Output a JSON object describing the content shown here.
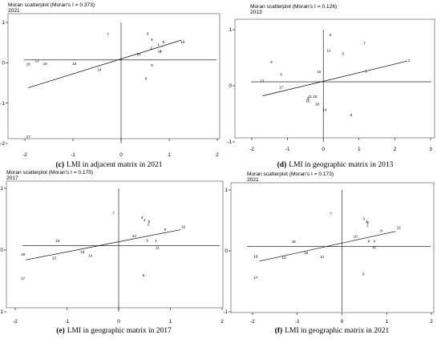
{
  "chart_data": [
    {
      "type": "scatter",
      "title": "Moran scatterplot (Moran's I = 0.373)",
      "subtitle": "2021",
      "caption_letter": "(c)",
      "caption": "LMI in adjacent matrix in 2021",
      "xlim": [
        -2,
        2
      ],
      "ylim": [
        -2,
        1
      ],
      "x_ticks": [
        "-2",
        "-1",
        "0",
        "1",
        "2"
      ],
      "y_ticks": [
        "-2",
        "-1",
        "0",
        "1"
      ],
      "x_tick_values": [
        -2,
        -1,
        0,
        1,
        2
      ],
      "y_tick_values": [
        -2,
        -1,
        0,
        1
      ],
      "fit_line": {
        "x": [
          -1.93,
          1.25
        ],
        "y": [
          -0.62,
          0.56
        ]
      },
      "points": [
        {
          "label": "1",
          "x": 0.78,
          "y": 0.46
        },
        {
          "label": "2",
          "x": 0.63,
          "y": 0.37
        },
        {
          "label": "3",
          "x": 0.55,
          "y": 0.72
        },
        {
          "label": "4",
          "x": 0.82,
          "y": 0.29
        },
        {
          "label": "5",
          "x": 0.64,
          "y": 0.57
        },
        {
          "label": "6",
          "x": 0.52,
          "y": -0.39
        },
        {
          "label": "7",
          "x": -0.27,
          "y": 0.7
        },
        {
          "label": "8",
          "x": 0.88,
          "y": 0.52
        },
        {
          "label": "9",
          "x": 0.64,
          "y": -0.06
        },
        {
          "label": "10",
          "x": 0.37,
          "y": 0.22
        },
        {
          "label": "11",
          "x": 0.8,
          "y": 0.29
        },
        {
          "label": "12",
          "x": 1.28,
          "y": 0.52
        },
        {
          "label": "13",
          "x": -1.75,
          "y": 0.05
        },
        {
          "label": "14",
          "x": -0.45,
          "y": -0.17
        },
        {
          "label": "15",
          "x": -1.58,
          "y": -0.02
        },
        {
          "label": "16",
          "x": -0.97,
          "y": -0.02
        },
        {
          "label": "17",
          "x": -1.93,
          "y": -1.83
        },
        {
          "label": "18",
          "x": -1.93,
          "y": -0.03
        }
      ]
    },
    {
      "type": "scatter",
      "title": "Moran scatterplot (Moran's I = 0.126)",
      "subtitle": "2013",
      "caption_letter": "(d)",
      "caption": "LMI in geographic matrix in 2013",
      "xlim": [
        -2,
        3
      ],
      "ylim": [
        -1,
        1
      ],
      "x_ticks": [
        "-2",
        "-1",
        "0",
        "1",
        "2",
        "3"
      ],
      "y_ticks": [
        "-1",
        "0",
        "1"
      ],
      "x_tick_values": [
        -2,
        -1,
        0,
        1,
        2,
        3
      ],
      "y_tick_values": [
        -1,
        0,
        1
      ],
      "fit_line": {
        "x": [
          -1.7,
          2.35
        ],
        "y": [
          -0.18,
          0.44
        ]
      },
      "points": [
        {
          "label": "1",
          "x": 1.2,
          "y": 0.26
        },
        {
          "label": "2",
          "x": 2.4,
          "y": 0.45
        },
        {
          "label": "3",
          "x": 0.55,
          "y": 0.57
        },
        {
          "label": "4",
          "x": -1.18,
          "y": 0.2
        },
        {
          "label": "5",
          "x": 0.2,
          "y": 0.91
        },
        {
          "label": "6",
          "x": -1.45,
          "y": 0.42
        },
        {
          "label": "7",
          "x": 1.15,
          "y": 0.76
        },
        {
          "label": "8",
          "x": 0.78,
          "y": -0.52
        },
        {
          "label": "9",
          "x": -0.43,
          "y": -0.23
        },
        {
          "label": "10",
          "x": -0.12,
          "y": 0.25
        },
        {
          "label": "11",
          "x": -0.37,
          "y": -0.19
        },
        {
          "label": "12",
          "x": 0.15,
          "y": 0.63
        },
        {
          "label": "13",
          "x": -1.72,
          "y": 0.09
        },
        {
          "label": "14",
          "x": 0.04,
          "y": -0.43
        },
        {
          "label": "15",
          "x": -0.43,
          "y": -0.27
        },
        {
          "label": "16",
          "x": -0.17,
          "y": -0.33
        },
        {
          "label": "17",
          "x": -1.18,
          "y": -0.03
        },
        {
          "label": "18",
          "x": -0.23,
          "y": -0.19
        }
      ]
    },
    {
      "type": "scatter",
      "title": "Moran scatterplot (Moran's I = 0.175)",
      "subtitle": "2017",
      "caption_letter": "(e)",
      "caption": "LMI in geographic matrix in 2017",
      "xlim": [
        -2,
        2
      ],
      "ylim": [
        -1,
        1
      ],
      "x_ticks": [
        "-2",
        "-1",
        "0",
        "1",
        "2"
      ],
      "y_ticks": [
        "-1",
        "0",
        "1"
      ],
      "x_tick_values": [
        -2,
        -1,
        0,
        1,
        2
      ],
      "y_tick_values": [
        -1,
        0,
        1
      ],
      "fit_line": {
        "x": [
          -1.8,
          1.2
        ],
        "y": [
          -0.16,
          0.33
        ]
      },
      "points": [
        {
          "label": "1",
          "x": 0.5,
          "y": 0.49
        },
        {
          "label": "2",
          "x": 0.57,
          "y": 0.42
        },
        {
          "label": "3",
          "x": 0.45,
          "y": 0.53
        },
        {
          "label": "4",
          "x": 0.72,
          "y": 0.15
        },
        {
          "label": "5",
          "x": 0.59,
          "y": 0.46
        },
        {
          "label": "6",
          "x": 0.48,
          "y": -0.41
        },
        {
          "label": "7",
          "x": -0.1,
          "y": 0.6
        },
        {
          "label": "8",
          "x": 0.9,
          "y": 0.33
        },
        {
          "label": "9",
          "x": 0.55,
          "y": 0.16
        },
        {
          "label": "10",
          "x": 0.3,
          "y": 0.23
        },
        {
          "label": "11",
          "x": 0.75,
          "y": 0.04
        },
        {
          "label": "12",
          "x": 1.25,
          "y": 0.38
        },
        {
          "label": "13",
          "x": -1.25,
          "y": -0.13
        },
        {
          "label": "14",
          "x": -0.55,
          "y": -0.09
        },
        {
          "label": "15",
          "x": -1.18,
          "y": 0.15
        },
        {
          "label": "16",
          "x": -0.7,
          "y": -0.03
        },
        {
          "label": "17",
          "x": -1.85,
          "y": -0.46
        },
        {
          "label": "18",
          "x": -1.85,
          "y": -0.07
        }
      ]
    },
    {
      "type": "scatter",
      "title": "Moran scatterplot (Moran's I = 0.173)",
      "subtitle": "2021",
      "caption_letter": "(f)",
      "caption": "LMI in geographic matrix in 2021",
      "xlim": [
        -2,
        2
      ],
      "ylim": [
        -1,
        1
      ],
      "x_ticks": [
        "-2",
        "-1",
        "0",
        "1",
        "2"
      ],
      "y_ticks": [
        "-1",
        "0",
        "1"
      ],
      "x_tick_values": [
        -2,
        -1,
        0,
        1,
        2
      ],
      "y_tick_values": [
        -1,
        0,
        1
      ],
      "fit_line": {
        "x": [
          -1.85,
          1.2
        ],
        "y": [
          -0.17,
          0.32
        ]
      },
      "points": [
        {
          "label": "1",
          "x": 0.55,
          "y": 0.48
        },
        {
          "label": "2",
          "x": 0.57,
          "y": 0.42
        },
        {
          "label": "3",
          "x": 0.49,
          "y": 0.53
        },
        {
          "label": "4",
          "x": 0.72,
          "y": 0.16
        },
        {
          "label": "5",
          "x": 0.58,
          "y": 0.47
        },
        {
          "label": "6",
          "x": 0.48,
          "y": -0.38
        },
        {
          "label": "7",
          "x": -0.25,
          "y": 0.61
        },
        {
          "label": "8",
          "x": 0.88,
          "y": 0.33
        },
        {
          "label": "9",
          "x": 0.6,
          "y": 0.16
        },
        {
          "label": "10",
          "x": 0.3,
          "y": 0.24
        },
        {
          "label": "11",
          "x": 0.72,
          "y": 0.06
        },
        {
          "label": "12",
          "x": 1.27,
          "y": 0.38
        },
        {
          "label": "13",
          "x": -1.3,
          "y": -0.11
        },
        {
          "label": "14",
          "x": -0.45,
          "y": -0.1
        },
        {
          "label": "15",
          "x": -1.08,
          "y": 0.15
        },
        {
          "label": "16",
          "x": -0.8,
          "y": -0.03
        },
        {
          "label": "17",
          "x": -1.93,
          "y": -0.44
        },
        {
          "label": "18",
          "x": -1.93,
          "y": -0.09
        }
      ]
    }
  ]
}
